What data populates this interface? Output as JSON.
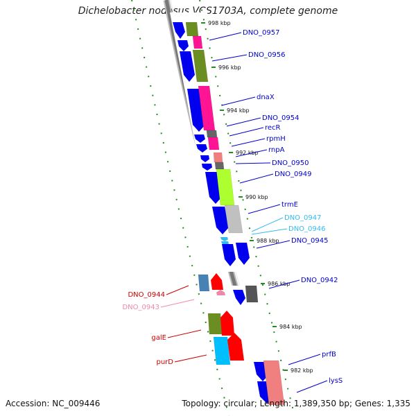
{
  "title": "Dichelobacter nodosus VCS1703A, complete genome",
  "footer": {
    "accession": "Accession: NC_009446",
    "stats": "Topology: circular; Length: 1,389,350 bp; Genes: 1,335"
  },
  "colors": {
    "label_blue": "#0000cc",
    "label_cyan": "#33bbee",
    "label_red": "#cc0000",
    "label_pink": "#ee88aa",
    "gene_blue": "#0000ee",
    "olive": "#6b8e23",
    "magenta": "#ff1493",
    "salmon": "#f08080",
    "lime": "#adff2f",
    "silver": "#c0c0c0",
    "slate": "#4682b4",
    "red": "#ff0000",
    "cyan": "#00bfff",
    "grid_green": "#228b22"
  },
  "ticks": [
    "998 kbp",
    "996 kbp",
    "994 kbp",
    "992 kbp",
    "990 kbp",
    "988 kbp",
    "986 kbp",
    "984 kbp",
    "982 kbp"
  ],
  "gene_labels": [
    {
      "text": "DNO_0957",
      "color": "blue"
    },
    {
      "text": "DNO_0956",
      "color": "blue"
    },
    {
      "text": "dnaX",
      "color": "blue"
    },
    {
      "text": "DNO_0954",
      "color": "blue"
    },
    {
      "text": "recR",
      "color": "blue"
    },
    {
      "text": "rpmH",
      "color": "blue"
    },
    {
      "text": "rnpA",
      "color": "blue"
    },
    {
      "text": "DNO_0950",
      "color": "blue"
    },
    {
      "text": "DNO_0949",
      "color": "blue"
    },
    {
      "text": "trmE",
      "color": "blue"
    },
    {
      "text": "DNO_0947",
      "color": "cyan"
    },
    {
      "text": "DNO_0946",
      "color": "cyan"
    },
    {
      "text": "DNO_0945",
      "color": "blue"
    },
    {
      "text": "DNO_0942",
      "color": "blue"
    },
    {
      "text": "prfB",
      "color": "blue"
    },
    {
      "text": "lysS",
      "color": "blue"
    },
    {
      "text": "DNO_0944",
      "color": "red"
    },
    {
      "text": "DNO_0943",
      "color": "pink"
    },
    {
      "text": "galE",
      "color": "red"
    },
    {
      "text": "purD",
      "color": "red"
    }
  ]
}
